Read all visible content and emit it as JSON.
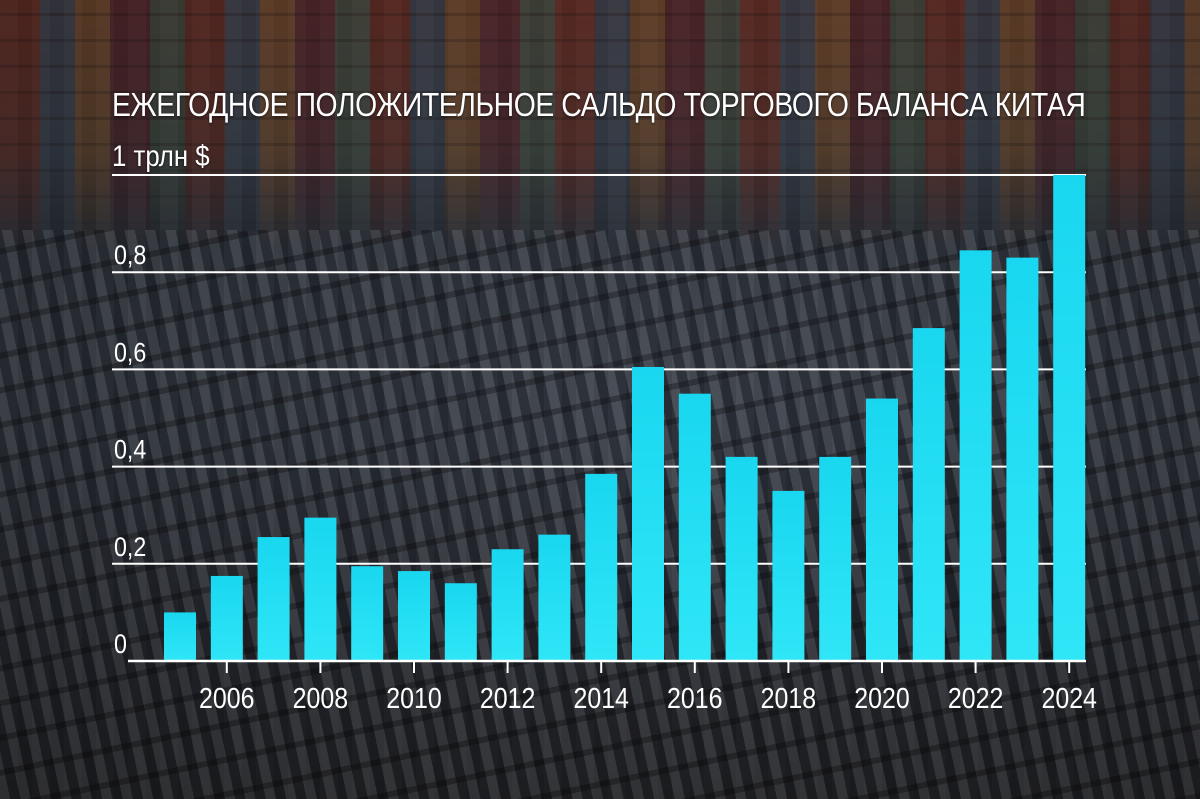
{
  "chart_data": {
    "type": "bar",
    "title": "ЕЖЕГОДНОЕ ПОЛОЖИТЕЛЬНОЕ САЛЬДО ТОРГОВОГО БАЛАНСА КИТАЯ",
    "unit_label": "1 трлн $",
    "xlabel": "",
    "ylabel": "",
    "ylim": [
      0,
      1.0
    ],
    "y_tick_labels": [
      {
        "value": 0,
        "label": "0"
      },
      {
        "value": 0.2,
        "label": "0,2"
      },
      {
        "value": 0.4,
        "label": "0,4"
      },
      {
        "value": 0.6,
        "label": "0,6"
      },
      {
        "value": 0.8,
        "label": "0,8"
      },
      {
        "value": 1.0,
        "label": ""
      }
    ],
    "categories": [
      "2005",
      "2006",
      "2007",
      "2008",
      "2009",
      "2010",
      "2011",
      "2012",
      "2013",
      "2014",
      "2015",
      "2016",
      "2017",
      "2018",
      "2019",
      "2020",
      "2021",
      "2022",
      "2023",
      "2024"
    ],
    "x_tick_labels_shown": [
      "2006",
      "2008",
      "2010",
      "2012",
      "2014",
      "2016",
      "2018",
      "2020",
      "2022",
      "2024"
    ],
    "values": [
      0.1,
      0.175,
      0.255,
      0.295,
      0.195,
      0.185,
      0.16,
      0.23,
      0.26,
      0.385,
      0.605,
      0.55,
      0.42,
      0.35,
      0.42,
      0.54,
      0.685,
      0.845,
      0.83,
      1.0
    ],
    "grid": true,
    "legend": "none",
    "colors": {
      "bar": "#19d7f0",
      "bar_bottom": "#2fe6f7",
      "gridline": "#ffffff",
      "text": "#ffffff"
    }
  }
}
